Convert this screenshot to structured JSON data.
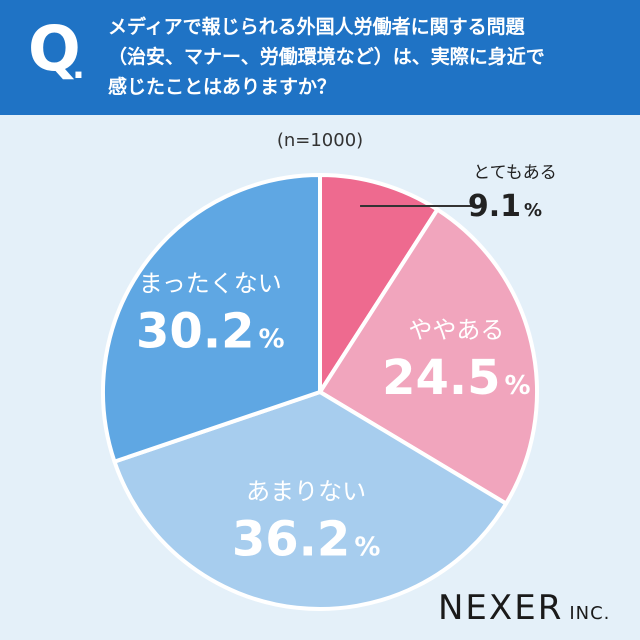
{
  "header": {
    "q_mark": "Q",
    "q_dot": ".",
    "question_lines": [
      "メディアで報じられる外国人労働者に関する問題",
      "（治安、マナー、労働環境など）は、実際に身近で",
      "感じたことはありますか？"
    ]
  },
  "sample_size": "(n=1000)",
  "brand": {
    "name": "NEXER",
    "suffix": "INC."
  },
  "colors": {
    "header_bg": "#1f73c5",
    "page_bg": "#e4f0f9"
  },
  "chart_data": {
    "type": "pie",
    "title": "",
    "start_angle_deg": 0,
    "direction": "clockwise",
    "slices": [
      {
        "label": "とてもある",
        "value": 9.1,
        "display": "9.1",
        "unit": "%",
        "color": "#ee6a8f",
        "label_position": "outside"
      },
      {
        "label": "ややある",
        "value": 24.5,
        "display": "24.5",
        "unit": "%",
        "color": "#f1a5bd",
        "label_position": "inside"
      },
      {
        "label": "あまりない",
        "value": 36.2,
        "display": "36.2",
        "unit": "%",
        "color": "#a7cdee",
        "label_position": "inside"
      },
      {
        "label": "まったくない",
        "value": 30.2,
        "display": "30.2",
        "unit": "%",
        "color": "#5fa7e3",
        "label_position": "inside"
      }
    ]
  }
}
